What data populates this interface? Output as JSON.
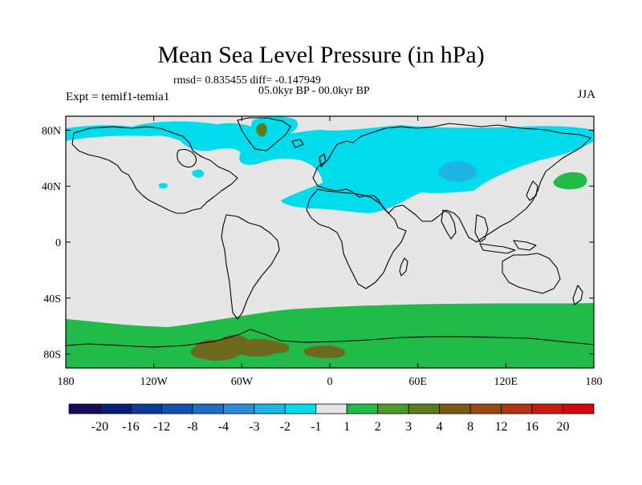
{
  "title": "Mean Sea Level Pressure (in hPa)",
  "stats_line": "rmsd= 0.835455 diff= -0.147949",
  "period_label": "05.0kyr BP - 00.0kyr BP",
  "experiment_label": "Expt = temif1-temia1",
  "season_label": "JJA",
  "map": {
    "lon_ticks": [
      "180",
      "120W",
      "60W",
      "0",
      "60E",
      "120E",
      "180"
    ],
    "lat_ticks": [
      "80N",
      "40N",
      "0",
      "40S",
      "80S"
    ],
    "background_color": "#e6e6e6"
  },
  "chart_data": {
    "type": "heatmap",
    "variable": "mean sea level pressure difference",
    "units": "hPa",
    "x_range": [
      -180,
      180
    ],
    "y_range": [
      -90,
      90
    ],
    "colorbar": {
      "levels": [
        -20,
        -16,
        -12,
        -8,
        -4,
        -3,
        -2,
        -1,
        1,
        2,
        3,
        4,
        8,
        12,
        16,
        20
      ],
      "tick_labels": [
        "-20",
        "-16",
        "-12",
        "-8",
        "-4",
        "-3",
        "-2",
        "-1",
        "1",
        "2",
        "3",
        "4",
        "8",
        "12",
        "16",
        "20"
      ],
      "colors": [
        "#1c0a5a",
        "#0a1e78",
        "#0f3a94",
        "#1450ac",
        "#1e6cc4",
        "#2c8ed8",
        "#1fb4e4",
        "#00dcec",
        "#e6e6e6",
        "#21bb49",
        "#4d9a2a",
        "#5d7a1c",
        "#7a5a16",
        "#9a4a12",
        "#b4320e",
        "#c81c10",
        "#d4080c"
      ]
    },
    "regions": [
      {
        "name": "north-atlantic-eurasia-negative",
        "lon": [
          [
            -140,
            70
          ],
          [
            -60,
            40
          ],
          [
            0,
            40
          ],
          [
            60,
            55
          ],
          [
            140,
            65
          ],
          [
            180,
            75
          ]
        ],
        "lat_band": [
          30,
          85
        ],
        "value_range": [
          -2,
          -1
        ]
      },
      {
        "name": "central-asia-low",
        "lon": [
          [
            75,
            45
          ]
        ],
        "lat_band": [
          40,
          55
        ],
        "value_range": [
          -3,
          -2
        ]
      },
      {
        "name": "greenland-positive",
        "lon": [
          [
            -45,
            75
          ]
        ],
        "lat_band": [
          70,
          80
        ],
        "value_range": [
          2,
          4
        ]
      },
      {
        "name": "north-pacific-positive",
        "lon": [
          [
            170,
            45
          ]
        ],
        "lat_band": [
          40,
          50
        ],
        "value_range": [
          1,
          2
        ]
      },
      {
        "name": "southern-ocean-antarctica-positive",
        "lon": [
          [
            -180,
            180
          ]
        ],
        "lat_band": [
          -90,
          -55
        ],
        "value_range": [
          1,
          2
        ]
      },
      {
        "name": "antarctica-interior-positive",
        "lon": [
          [
            -90,
            -80
          ],
          [
            0,
            -80
          ]
        ],
        "lat_band": [
          -90,
          -75
        ],
        "value_range": [
          3,
          4
        ]
      }
    ]
  },
  "colors": {
    "neutral": "#e6e6e6",
    "cyan": "#00dcec",
    "blue": "#1fb4e4",
    "green": "#21bb49",
    "olive": "#5d7a1c",
    "brown": "#6d6a1e"
  }
}
